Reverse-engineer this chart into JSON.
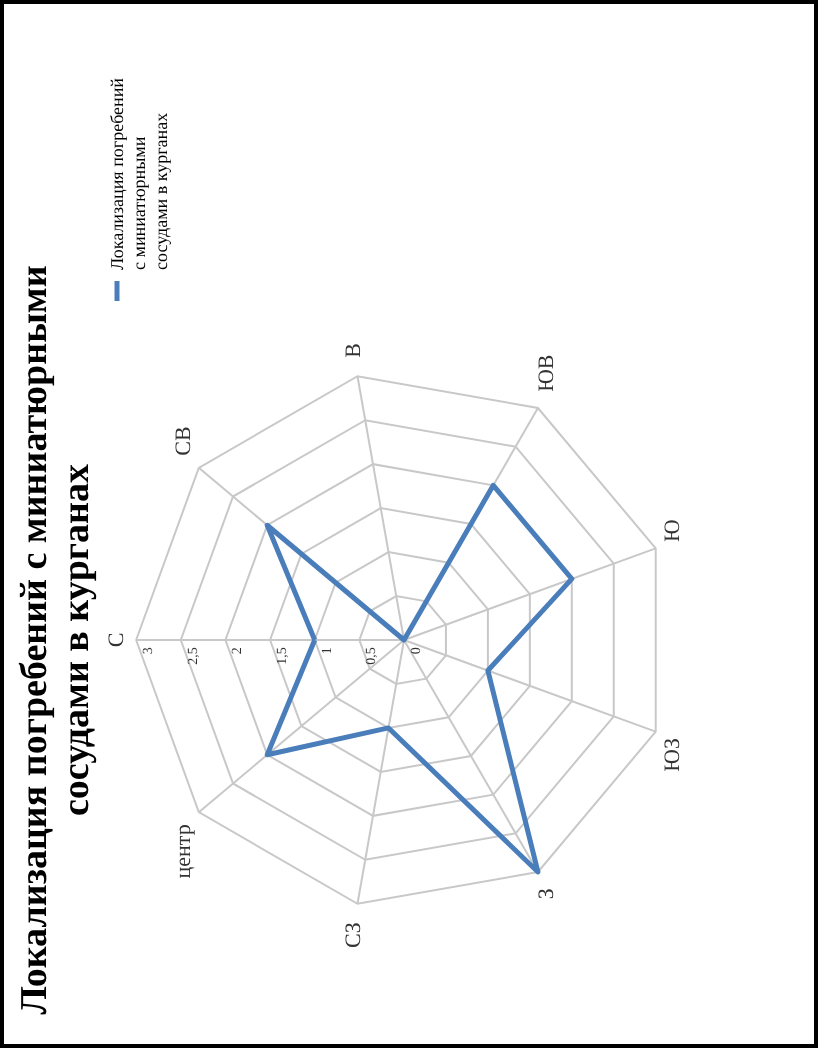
{
  "chart_data": {
    "type": "radar",
    "title": "Локализация погребений с миниатюрными сосудами в курганах",
    "categories": [
      "С",
      "СВ",
      "В",
      "ЮВ",
      "Ю",
      "ЮЗ",
      "З",
      "СЗ",
      "центр"
    ],
    "series": [
      {
        "name": "Локализация погребений с миниатюрными сосудами в курганах",
        "color": "#4a7ebb",
        "values": [
          1,
          2,
          0,
          2,
          2,
          1,
          3,
          1,
          2
        ]
      }
    ],
    "ylim": [
      0,
      3
    ],
    "yticks": [
      0,
      {
        "value": 0.5,
        "label": "0,5"
      },
      1,
      {
        "value": 1.5,
        "label": "1,5"
      },
      2,
      {
        "value": 2.5,
        "label": "2,5"
      },
      3
    ],
    "grid": true,
    "legend": "top"
  }
}
